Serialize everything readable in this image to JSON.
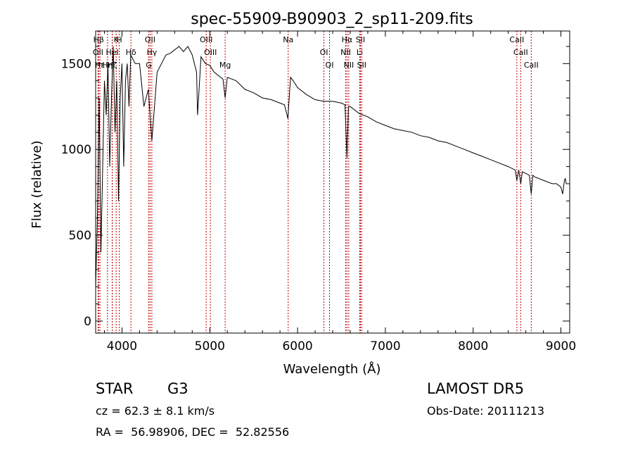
{
  "chart_data": {
    "type": "line",
    "title": "spec-55909-B90903_2_sp11-209.fits",
    "xlabel": "Wavelength (Å)",
    "ylabel": "Flux (relative)",
    "xlim": [
      3700,
      9100
    ],
    "ylim": [
      -70,
      1690
    ],
    "xticks": [
      {
        "value": 4000,
        "label": "4000"
      },
      {
        "value": 5000,
        "label": "5000"
      },
      {
        "value": 6000,
        "label": "6000"
      },
      {
        "value": 7000,
        "label": "7000"
      },
      {
        "value": 8000,
        "label": "8000"
      },
      {
        "value": 9000,
        "label": "9000"
      }
    ],
    "yticks": [
      {
        "value": 0,
        "label": "0"
      },
      {
        "value": 500,
        "label": "500"
      },
      {
        "value": 1000,
        "label": "1000"
      },
      {
        "value": 1500,
        "label": "1500"
      }
    ],
    "series": [
      {
        "x": [
          3700,
          3720,
          3740,
          3760,
          3780,
          3800,
          3820,
          3840,
          3860,
          3880,
          3900,
          3920,
          3940,
          3960,
          3980,
          4000,
          4020,
          4040,
          4060,
          4080,
          4100,
          4150,
          4200,
          4250,
          4300,
          4340,
          4400,
          4450,
          4500,
          4550,
          4600,
          4650,
          4700,
          4750,
          4800,
          4850,
          4861,
          4900,
          4950,
          5000,
          5050,
          5100,
          5150,
          5175,
          5200,
          5300,
          5400,
          5500,
          5600,
          5700,
          5800,
          5850,
          5890,
          5920,
          5950,
          6000,
          6100,
          6200,
          6300,
          6400,
          6500,
          6540,
          6563,
          6580,
          6600,
          6700,
          6800,
          6900,
          7000,
          7100,
          7200,
          7300,
          7400,
          7500,
          7600,
          7700,
          7800,
          7900,
          8000,
          8100,
          8200,
          8300,
          8400,
          8480,
          8498,
          8520,
          8542,
          8560,
          8600,
          8640,
          8662,
          8680,
          8700,
          8800,
          8900,
          8950,
          9000,
          9020,
          9040,
          9050,
          9060
        ],
        "y": [
          200,
          600,
          1300,
          400,
          900,
          1400,
          1200,
          1500,
          900,
          1300,
          1600,
          1100,
          1400,
          700,
          1300,
          1500,
          900,
          1400,
          1500,
          1250,
          1550,
          1500,
          1500,
          1250,
          1350,
          1050,
          1450,
          1500,
          1550,
          1560,
          1580,
          1600,
          1570,
          1600,
          1550,
          1450,
          1200,
          1540,
          1500,
          1490,
          1450,
          1430,
          1410,
          1300,
          1420,
          1400,
          1350,
          1330,
          1300,
          1290,
          1270,
          1260,
          1180,
          1420,
          1400,
          1360,
          1320,
          1290,
          1280,
          1280,
          1270,
          1260,
          950,
          1250,
          1250,
          1210,
          1190,
          1160,
          1140,
          1120,
          1110,
          1100,
          1080,
          1070,
          1050,
          1040,
          1020,
          1000,
          980,
          960,
          940,
          920,
          900,
          880,
          820,
          880,
          800,
          870,
          860,
          850,
          740,
          850,
          840,
          820,
          800,
          800,
          780,
          740,
          820,
          830,
          800
        ]
      }
    ],
    "lines": [
      {
        "label": "Hβ",
        "wave": 3734
      },
      {
        "label": "OII",
        "wave": 3727
      },
      {
        "label": "Hε",
        "wave": 3749
      },
      {
        "label": "K",
        "wave": 3934
      },
      {
        "label": "HeI",
        "wave": 3889
      },
      {
        "label": "Hη",
        "wave": 3835
      },
      {
        "label": "H",
        "wave": 3969
      },
      {
        "label": "Hδ",
        "wave": 4102
      },
      {
        "label": "Hζ",
        "wave": 3889
      },
      {
        "label": "OII",
        "wave": 4320
      },
      {
        "label": "Hγ",
        "wave": 4340
      },
      {
        "label": "G",
        "wave": 4305
      },
      {
        "label": "OIII",
        "wave": 4959
      },
      {
        "label": "OIII",
        "wave": 5007
      },
      {
        "label": "Mg",
        "wave": 5175
      },
      {
        "label": "Na",
        "wave": 5893
      },
      {
        "label": "OI",
        "wave": 6300
      },
      {
        "label": "OI",
        "wave": 6364
      },
      {
        "label": "Hα",
        "wave": 6563
      },
      {
        "label": "NII",
        "wave": 6548
      },
      {
        "label": "NII",
        "wave": 6583
      },
      {
        "label": "SII",
        "wave": 6716
      },
      {
        "label": "Li",
        "wave": 6708
      },
      {
        "label": "SII",
        "wave": 6731
      },
      {
        "label": "CaII",
        "wave": 8498
      },
      {
        "label": "CaII",
        "wave": 8542
      },
      {
        "label": "CaII",
        "wave": 8662
      }
    ]
  },
  "info": {
    "classification": "STAR",
    "subclass": "G3",
    "cz": "cz = 62.3 ± 8.1 km/s",
    "coords": "RA =  56.98906, DEC =  52.82556",
    "survey": "LAMOST DR5",
    "obs_date": "Obs-Date: 20111213"
  }
}
